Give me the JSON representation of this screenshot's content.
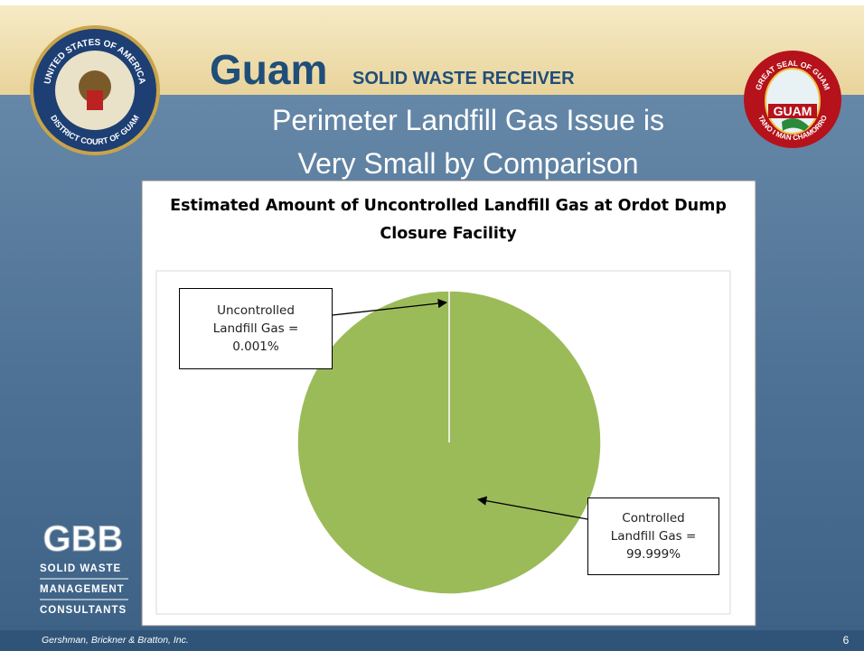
{
  "header": {
    "brand": "Guam",
    "subtitle": "SOLID WASTE RECEIVER",
    "title_lines": [
      "Perimeter Landfill Gas Issue is",
      "Very Small by Comparison"
    ]
  },
  "left_seal": {
    "top": "UNITED STATES OF AMERICA",
    "bottom": "DISTRICT COURT OF GUAM"
  },
  "right_seal": {
    "top": "GREAT SEAL OF GUAM",
    "center": "GUAM",
    "bottom": "TANO I MAN CHAMORRO"
  },
  "logo": {
    "mark": "GBB",
    "lines": [
      "SOLID WASTE",
      "MANAGEMENT",
      "CONSULTANTS"
    ]
  },
  "footer": {
    "company": "Gershman, Brickner & Bratton, Inc.",
    "page": "6"
  },
  "chart_data": {
    "type": "pie",
    "title_lines": [
      "Estimated Amount of Uncontrolled Landfill Gas at Ordot Dump",
      "Closure Facility"
    ],
    "categories": [
      "Uncontrolled Landfill Gas",
      "Controlled Landfill Gas"
    ],
    "values": [
      0.001,
      99.999
    ],
    "value_labels": [
      "Uncontrolled Landfill Gas = 0.001%",
      "Controlled Landfill Gas = 99.999%"
    ],
    "colors": [
      "#c00000",
      "#9bbb59"
    ]
  }
}
